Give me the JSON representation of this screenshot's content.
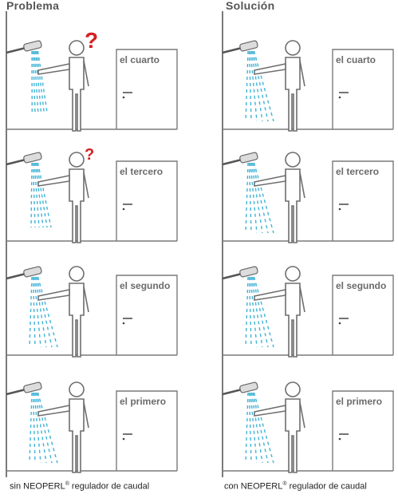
{
  "headings": {
    "left": "Problema",
    "right": "Solución"
  },
  "floors": [
    "el cuarto",
    "el tercero",
    "el segundo",
    "el primero"
  ],
  "problem_flags": [
    true,
    true,
    false,
    false
  ],
  "question_mark": "?",
  "captions": {
    "left": {
      "prefix": "sin ",
      "brand": "NEOPERL",
      "mark": "®",
      "suffix": " regulador de caudal"
    },
    "right": {
      "prefix": "con ",
      "brand": "NEOPERL",
      "mark": "®",
      "suffix": " regulador de caudal"
    }
  },
  "colors": {
    "water": "#3fb3d6",
    "question": "#d42020",
    "lines": "#7a7a7a",
    "figure": "#6e6e6e"
  }
}
